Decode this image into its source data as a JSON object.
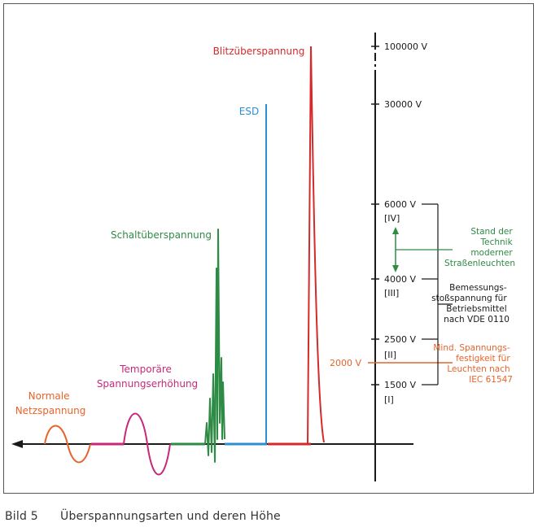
{
  "labels": {
    "normale_netzspannung": [
      "Normale",
      "Netzspannung"
    ],
    "temporaere": [
      "Temporäre",
      "Spannungserhöhung"
    ],
    "schalt": "Schaltüberspannung",
    "esd": "ESD",
    "blitz": "Blitzüberspannung"
  },
  "axis": {
    "ticks": [
      {
        "label": "100000 V"
      },
      {
        "label": "30000 V"
      },
      {
        "label": "6000 V",
        "category": "[IV]"
      },
      {
        "label": "4000 V",
        "category": "[III]"
      },
      {
        "label": "2500 V",
        "category": "[II]"
      },
      {
        "label": "1500 V",
        "category": "[I]"
      }
    ],
    "marker_2000": "2000 V"
  },
  "notes": {
    "stand": [
      "Stand der",
      "Technik",
      "moderner",
      "Straßenleuchten"
    ],
    "bemessung": [
      "Bemessungs-",
      "stoßspannung für",
      "Betriebsmittel",
      "nach VDE 0110"
    ],
    "mind": [
      "Mind. Spannungs-",
      "festigkeit für",
      "Leuchten nach",
      "IEC 61547"
    ]
  },
  "caption": {
    "number": "Bild 5",
    "text": "Überspannungsarten und deren Höhe"
  },
  "colors": {
    "orange": "#e8632a",
    "magenta": "#c8287a",
    "green": "#2e8b45",
    "blue": "#2c8fd0",
    "red": "#d42a2a",
    "axis": "#1a1a1a"
  }
}
